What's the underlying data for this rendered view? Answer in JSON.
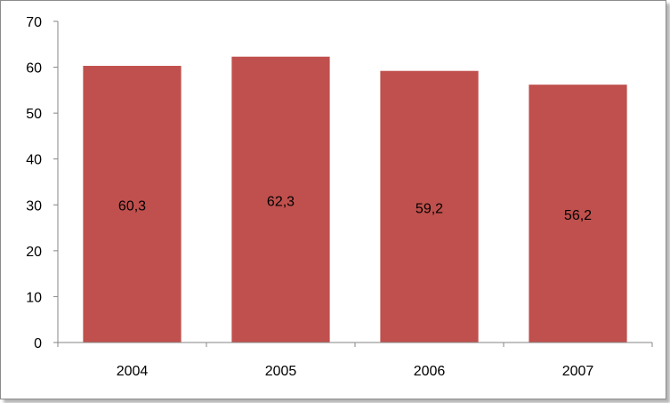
{
  "chart_data": {
    "type": "bar",
    "categories": [
      "2004",
      "2005",
      "2006",
      "2007"
    ],
    "values": [
      60.3,
      62.3,
      59.2,
      56.2
    ],
    "value_labels": [
      "60,3",
      "62,3",
      "59,2",
      "56,2"
    ],
    "title": "",
    "xlabel": "",
    "ylabel": "",
    "ylim": [
      0,
      70
    ],
    "yticks": [
      "0",
      "10",
      "20",
      "30",
      "40",
      "50",
      "60",
      "70"
    ],
    "grid": false,
    "legend": "none",
    "bar_color": "#c0504d"
  }
}
